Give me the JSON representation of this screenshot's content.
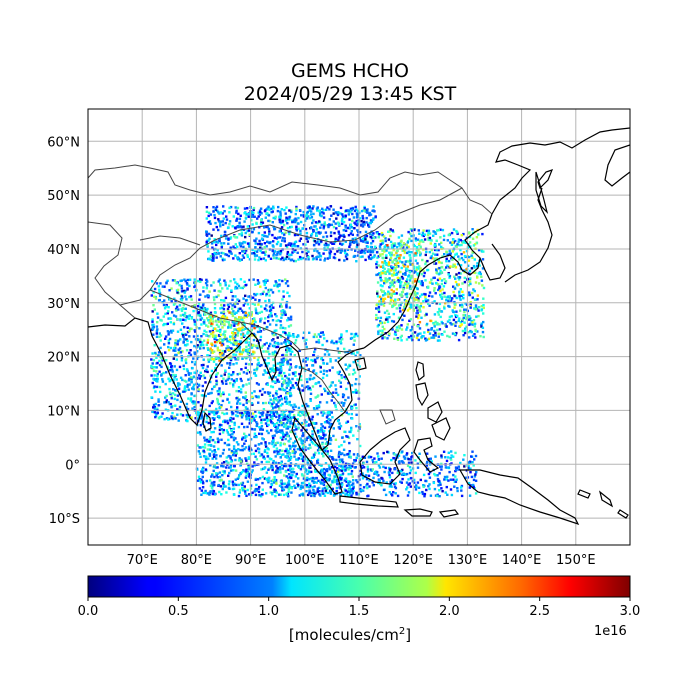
{
  "title": {
    "line1": "GEMS HCHO",
    "line2": "2024/05/29 13:45 KST"
  },
  "map": {
    "lon_range": [
      60,
      160
    ],
    "lat_range": [
      -15,
      66
    ],
    "lon_ticks": [
      "70°E",
      "80°E",
      "90°E",
      "100°E",
      "110°E",
      "120°E",
      "130°E",
      "140°E",
      "150°E"
    ],
    "lat_ticks": [
      "60°N",
      "50°N",
      "40°N",
      "30°N",
      "20°N",
      "10°N",
      "0°",
      "10°S"
    ],
    "grid": true,
    "coastline_color": "#000000",
    "border_color": "#444444"
  },
  "colorbar": {
    "ticks": [
      "0.0",
      "0.5",
      "1.0",
      "1.5",
      "2.0",
      "2.5",
      "3.0"
    ],
    "min": 0.0,
    "max": 3.0,
    "exponent": "1e16",
    "label_prefix": "[molecules/cm",
    "label_sup": "2",
    "label_suffix": "]",
    "colormap": "jet"
  }
}
